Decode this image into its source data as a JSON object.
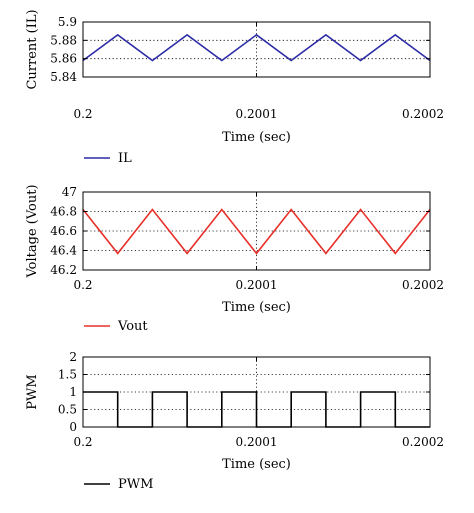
{
  "chart_data": [
    {
      "type": "line",
      "title": "",
      "xlabel": "Time (sec)",
      "ylabel": "Current (IL)",
      "xlim": [
        0.2,
        0.2002
      ],
      "ylim": [
        5.84,
        5.9
      ],
      "xticks": [
        0.2,
        0.2001,
        0.2002
      ],
      "xtick_labels": [
        "0.2",
        "0.2001",
        "0.2002"
      ],
      "yticks": [
        5.84,
        5.86,
        5.88,
        5.9
      ],
      "ytick_labels": [
        "5.84",
        "5.86",
        "5.88",
        "5.9"
      ],
      "grid": "dotted",
      "legend_position": "below",
      "series": [
        {
          "name": "IL",
          "color": "#2c2ca6",
          "x": [
            0.2,
            0.20002,
            0.20004,
            0.20006,
            0.20008,
            0.2001,
            0.20012,
            0.20014,
            0.20016,
            0.20018,
            0.2002
          ],
          "y": [
            5.858,
            5.886,
            5.858,
            5.886,
            5.858,
            5.886,
            5.858,
            5.886,
            5.858,
            5.886,
            5.858
          ]
        }
      ]
    },
    {
      "type": "line",
      "title": "",
      "xlabel": "Time (sec)",
      "ylabel": "Voltage (Vout)",
      "xlim": [
        0.2,
        0.2002
      ],
      "ylim": [
        46.2,
        47
      ],
      "xticks": [
        0.2,
        0.2001,
        0.2002
      ],
      "xtick_labels": [
        "0.2",
        "0.2001",
        "0.2002"
      ],
      "yticks": [
        46.2,
        46.4,
        46.6,
        46.8,
        47
      ],
      "ytick_labels": [
        "46.2",
        "46.4",
        "46.6",
        "46.8",
        "47"
      ],
      "grid": "dotted",
      "legend_position": "below",
      "series": [
        {
          "name": "Vout",
          "color": "#e8302a",
          "x": [
            0.2,
            0.20002,
            0.20004,
            0.20006,
            0.20008,
            0.2001,
            0.20012,
            0.20014,
            0.20016,
            0.20018,
            0.2002
          ],
          "y": [
            46.82,
            46.37,
            46.82,
            46.37,
            46.82,
            46.37,
            46.82,
            46.37,
            46.82,
            46.37,
            46.82
          ]
        }
      ]
    },
    {
      "type": "line",
      "title": "",
      "xlabel": "Time (sec)",
      "ylabel": "PWM",
      "xlim": [
        0.2,
        0.2002
      ],
      "ylim": [
        0,
        2
      ],
      "xticks": [
        0.2,
        0.2001,
        0.2002
      ],
      "xtick_labels": [
        "0.2",
        "0.2001",
        "0.2002"
      ],
      "yticks": [
        0,
        0.5,
        1,
        1.5,
        2
      ],
      "ytick_labels": [
        "0",
        "0.5",
        "1",
        "1.5",
        "2"
      ],
      "grid": "dotted",
      "legend_position": "below",
      "series": [
        {
          "name": "PWM",
          "color": "#000000",
          "x": [
            0.2,
            0.20002,
            0.20002,
            0.20004,
            0.20004,
            0.20006,
            0.20006,
            0.20008,
            0.20008,
            0.2001,
            0.2001,
            0.20012,
            0.20012,
            0.20014,
            0.20014,
            0.20016,
            0.20016,
            0.20018,
            0.20018,
            0.2002
          ],
          "y": [
            1,
            1,
            0,
            0,
            1,
            1,
            0,
            0,
            1,
            1,
            0,
            0,
            1,
            1,
            0,
            0,
            1,
            1,
            0,
            0
          ]
        }
      ]
    }
  ]
}
